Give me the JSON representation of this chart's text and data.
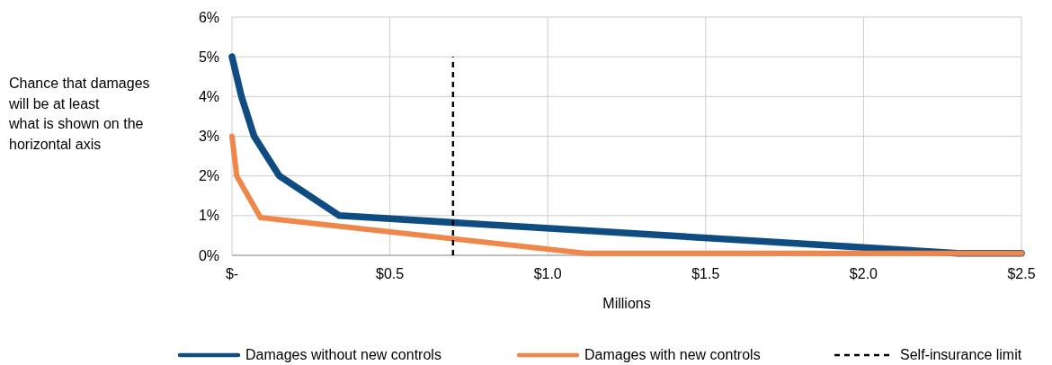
{
  "chart_data": {
    "type": "line",
    "ylabel": "Chance that damages will be at least what is shown on the horizontal axis",
    "xlabel": "Millions",
    "xlim": [
      0,
      2.5
    ],
    "xticks": [
      {
        "value": 0,
        "label": "$-"
      },
      {
        "value": 0.5,
        "label": "$0.5"
      },
      {
        "value": 1,
        "label": "$1.0"
      },
      {
        "value": 1.5,
        "label": "$1.5"
      },
      {
        "value": 2,
        "label": "$2.0"
      },
      {
        "value": 2.5,
        "label": "$2.5"
      }
    ],
    "ylim": [
      0,
      6
    ],
    "yticks": [
      {
        "value": 0,
        "label": "0%"
      },
      {
        "value": 1,
        "label": "1%"
      },
      {
        "value": 2,
        "label": "2%"
      },
      {
        "value": 3,
        "label": "3%"
      },
      {
        "value": 4,
        "label": "4%"
      },
      {
        "value": 5,
        "label": "5%"
      },
      {
        "value": 6,
        "label": "6%"
      }
    ],
    "grid": true,
    "legend": "bottom",
    "marker": "none",
    "series": [
      {
        "name": "Damages without new controls",
        "color": "#0f4c81",
        "line_style": "solid",
        "x": [
          0,
          0.03,
          0.07,
          0.15,
          0.34,
          2.0,
          2.3,
          2.5
        ],
        "values": [
          5,
          4,
          3,
          2,
          1,
          0.2,
          0.05,
          0.05
        ]
      },
      {
        "name": "Damages with new controls",
        "color": "#f0874a",
        "line_style": "solid",
        "x": [
          0,
          0.015,
          0.09,
          1.12,
          2.5
        ],
        "values": [
          3,
          2,
          0.95,
          0.05,
          0.05
        ]
      },
      {
        "name": "Self-insurance limit",
        "color": "#000000",
        "line_style": "dashed",
        "x": [
          0.7,
          0.7
        ],
        "values": [
          0,
          5
        ]
      }
    ]
  }
}
